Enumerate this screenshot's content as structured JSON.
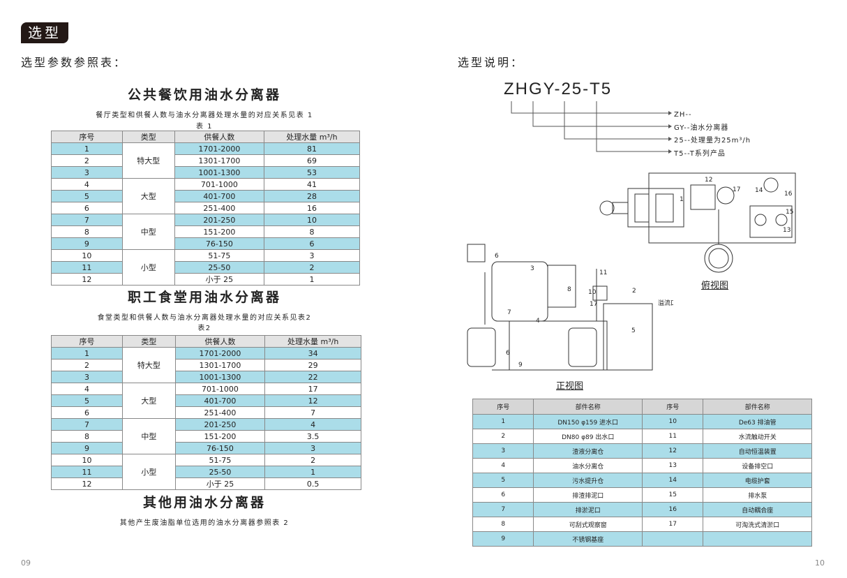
{
  "header": {
    "badge": "选型",
    "left_heading": "选型参数参照表：",
    "right_heading": "选型说明："
  },
  "columns": [
    "序号",
    "类型",
    "供餐人数",
    "处理水量 m³/h"
  ],
  "section1": {
    "title": "公共餐饮用油水分离器",
    "caption": "餐厅类型和供餐人数与油水分离器处理水量的对应关系见表 1",
    "table_label": "表 1",
    "groups": [
      {
        "type": "特大型",
        "rows": [
          [
            "1",
            "1701-2000",
            "81"
          ],
          [
            "2",
            "1301-1700",
            "69"
          ],
          [
            "3",
            "1001-1300",
            "53"
          ]
        ]
      },
      {
        "type": "大型",
        "rows": [
          [
            "4",
            "701-1000",
            "41"
          ],
          [
            "5",
            "401-700",
            "28"
          ],
          [
            "6",
            "251-400",
            "16"
          ]
        ]
      },
      {
        "type": "中型",
        "rows": [
          [
            "7",
            "201-250",
            "10"
          ],
          [
            "8",
            "151-200",
            "8"
          ],
          [
            "9",
            "76-150",
            "6"
          ]
        ]
      },
      {
        "type": "小型",
        "rows": [
          [
            "10",
            "51-75",
            "3"
          ],
          [
            "11",
            "25-50",
            "2"
          ],
          [
            "12",
            "小于 25",
            "1"
          ]
        ]
      }
    ]
  },
  "section2": {
    "title": "职工食堂用油水分离器",
    "caption": "食堂类型和供餐人数与油水分离器处理水量的对应关系见表2",
    "table_label": "表2",
    "groups": [
      {
        "type": "特大型",
        "rows": [
          [
            "1",
            "1701-2000",
            "34"
          ],
          [
            "2",
            "1301-1700",
            "29"
          ],
          [
            "3",
            "1001-1300",
            "22"
          ]
        ]
      },
      {
        "type": "大型",
        "rows": [
          [
            "4",
            "701-1000",
            "17"
          ],
          [
            "5",
            "401-700",
            "12"
          ],
          [
            "6",
            "251-400",
            "7"
          ]
        ]
      },
      {
        "type": "中型",
        "rows": [
          [
            "7",
            "201-250",
            "4"
          ],
          [
            "8",
            "151-200",
            "3.5"
          ],
          [
            "9",
            "76-150",
            "3"
          ]
        ]
      },
      {
        "type": "小型",
        "rows": [
          [
            "10",
            "51-75",
            "2"
          ],
          [
            "11",
            "25-50",
            "1"
          ],
          [
            "12",
            "小于 25",
            "0.5"
          ]
        ]
      }
    ]
  },
  "section3": {
    "title": "其他用油水分离器",
    "caption": "其他产生废油脂单位选用的油水分离器参照表 2"
  },
  "model": {
    "code": "ZHGY-25-T5",
    "items": [
      "ZH--",
      "GY--油水分离器",
      "25--处理量为25m³/h",
      "T5--T系列产品"
    ]
  },
  "diagram": {
    "top_view": "俯视图",
    "front_view": "正视图",
    "overflow": "溢流口",
    "top_labels": [
      "12",
      "17",
      "14",
      "16",
      "15",
      "13",
      "1"
    ],
    "front_labels": [
      "6",
      "3",
      "8",
      "11",
      "10",
      "2",
      "17",
      "7",
      "4",
      "5",
      "6",
      "9"
    ]
  },
  "parts": {
    "columns": [
      "序号",
      "部件名称",
      "序号",
      "部件名称"
    ],
    "rows": [
      [
        "1",
        "DN150 φ159 进水口",
        "10",
        "De63 排油管"
      ],
      [
        "2",
        "DN80 φ89  出水口",
        "11",
        "水流触动开关"
      ],
      [
        "3",
        "渣液分离仓",
        "12",
        "自动恒温装置"
      ],
      [
        "4",
        "油水分离仓",
        "13",
        "设备排空口"
      ],
      [
        "5",
        "污水提升仓",
        "14",
        "电缆护套"
      ],
      [
        "6",
        "排渣排泥口",
        "15",
        "排水泵"
      ],
      [
        "7",
        "排淤泥口",
        "16",
        "自动耦合座"
      ],
      [
        "8",
        "可刮式观察窗",
        "17",
        "可淘洗式清淤口"
      ],
      [
        "9",
        "不锈钢基座",
        "",
        ""
      ]
    ]
  },
  "pages": {
    "left": "09",
    "right": "10"
  },
  "colors": {
    "row_blue": "#abdde9",
    "header_grey": "#e3e3e3",
    "badge": "#231815"
  }
}
